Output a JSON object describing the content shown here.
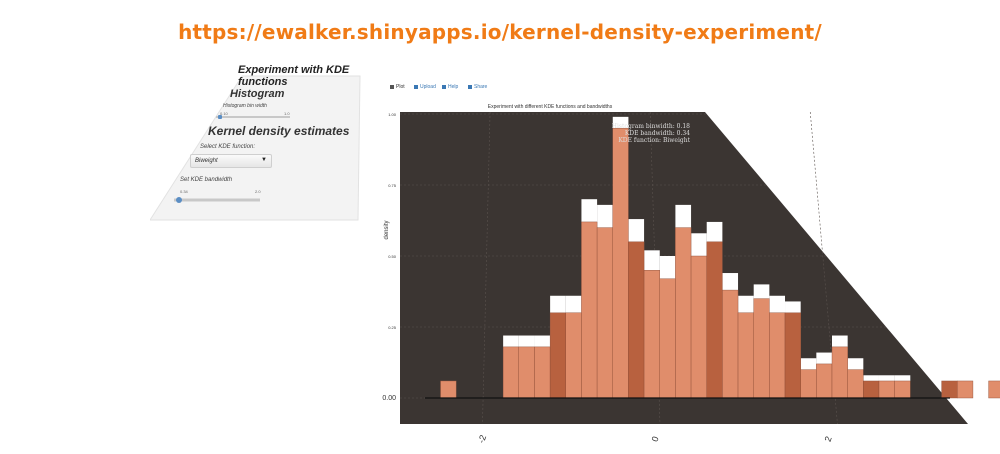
{
  "banner": {
    "url": "https://ewalker.shinyapps.io/kernel-density-experiment/"
  },
  "sidebar": {
    "app_title": "Experiment with KDE functions",
    "histogram_heading": "Histogram",
    "binwidth_label": "Histogram bin width",
    "binwidth_min": "0.10",
    "binwidth_max": "1.0",
    "binwidth_value": 0.18,
    "kde_heading": "Kernel density estimates",
    "kde_function_label": "Select KDE function:",
    "kde_function_selected": "Biweight",
    "bandwidth_label": "Set KDE bandwidth",
    "bandwidth_min": "0.34",
    "bandwidth_max": "2.0",
    "bandwidth_value": 0.34
  },
  "tabs": [
    {
      "label": "Plot",
      "icon": "bar-chart-icon",
      "active": true
    },
    {
      "label": "Upload",
      "icon": "file-icon",
      "active": false
    },
    {
      "label": "Help",
      "icon": "info-icon",
      "active": false
    },
    {
      "label": "Share",
      "icon": "share-icon",
      "active": false
    }
  ],
  "chart_data": {
    "type": "area",
    "title": "Experiment with different KDE functions and bandwidths",
    "ylabel": "density",
    "xlabel": "",
    "xlim": [
      -3.0,
      3.5
    ],
    "ylim": [
      0,
      1.0
    ],
    "x_ticks": [
      -2,
      0,
      2
    ],
    "x_tick_labels": [
      "-2",
      "0",
      "2"
    ],
    "y_ticks": [
      0,
      0.25,
      0.5,
      0.75,
      1.0
    ],
    "y_tick_labels": [
      "0.00",
      "0.25",
      "0.50",
      "0.75",
      "1.00"
    ],
    "annotation": [
      "Histogram binwidth: 0.18",
      "KDE bandwidth: 0.34",
      "KDE function: Biweight"
    ],
    "grid": true,
    "panel_color": "#3b3532",
    "bar_color": "#e08d6b",
    "bar_alt_color": "#b8613f",
    "kde_fill_color": "#ffffff",
    "bins_start": -2.5,
    "binwidth": 0.18,
    "hist_values": [
      0.06,
      0.0,
      0.0,
      0.0,
      0.18,
      0.18,
      0.18,
      0.3,
      0.3,
      0.62,
      0.6,
      0.95,
      0.55,
      0.45,
      0.42,
      0.6,
      0.5,
      0.55,
      0.38,
      0.3,
      0.35,
      0.3,
      0.3,
      0.1,
      0.12,
      0.18,
      0.1,
      0.06,
      0.06,
      0.06,
      0.0,
      0.0,
      0.06,
      0.06,
      0.0,
      0.06,
      0.06
    ],
    "kde_values": [
      0.06,
      0.0,
      0.0,
      0.0,
      0.22,
      0.22,
      0.22,
      0.36,
      0.36,
      0.7,
      0.68,
      0.99,
      0.63,
      0.52,
      0.5,
      0.68,
      0.58,
      0.62,
      0.44,
      0.36,
      0.4,
      0.36,
      0.34,
      0.14,
      0.16,
      0.22,
      0.14,
      0.08,
      0.08,
      0.08,
      0.0,
      0.0,
      0.08,
      0.08,
      0.0,
      0.08,
      0.08
    ]
  }
}
